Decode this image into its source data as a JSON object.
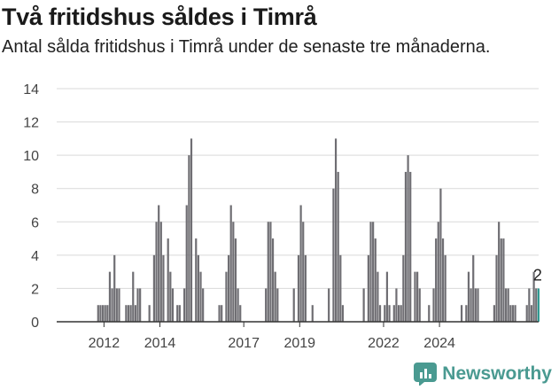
{
  "header": {
    "title": "Två fritidshus såldes i Timrå",
    "subtitle": "Antal sålda fritidshus i Timrå under de senaste tre månaderna."
  },
  "brand": {
    "name": "Newsworthy",
    "icon": "newsworthy-logo-icon",
    "color": "#4a9a91"
  },
  "colors": {
    "bar": "#6f6e73",
    "highlight": "#2f9a91",
    "grid": "#d9d9d9",
    "axis": "#333333"
  },
  "chart_data": {
    "type": "bar",
    "title": "Två fritidshus såldes i Timrå",
    "subtitle": "Antal sålda fritidshus i Timrå under de senaste tre månaderna.",
    "xlabel": "",
    "ylabel": "",
    "ylim": [
      0,
      14
    ],
    "yticks": [
      0,
      2,
      4,
      6,
      8,
      10,
      12,
      14
    ],
    "xtick_labels": [
      "2012",
      "2014",
      "2017",
      "2019",
      "2022",
      "2024"
    ],
    "grid": true,
    "highlight_label": "2",
    "values": [
      0,
      0,
      0,
      0,
      0,
      0,
      0,
      0,
      0,
      0,
      1,
      1,
      1,
      1,
      1,
      3,
      2,
      4,
      2,
      2,
      0,
      0,
      1,
      1,
      1,
      3,
      1,
      2,
      2,
      0,
      0,
      0,
      1,
      0,
      4,
      6,
      7,
      6,
      4,
      0,
      5,
      3,
      2,
      0,
      1,
      1,
      0,
      2,
      7,
      10,
      11,
      0,
      5,
      4,
      3,
      2,
      0,
      0,
      0,
      0,
      0,
      0,
      1,
      1,
      0,
      3,
      4,
      7,
      6,
      5,
      2,
      1,
      0,
      0,
      0,
      0,
      0,
      0,
      0,
      0,
      0,
      0,
      2,
      6,
      6,
      5,
      3,
      2,
      0,
      0,
      0,
      0,
      0,
      0,
      2,
      0,
      4,
      7,
      6,
      4,
      0,
      0,
      1,
      0,
      0,
      0,
      0,
      0,
      0,
      2,
      0,
      8,
      11,
      9,
      4,
      1,
      0,
      0,
      0,
      0,
      0,
      0,
      0,
      0,
      2,
      0,
      4,
      6,
      6,
      5,
      3,
      1,
      0,
      1,
      3,
      1,
      0,
      1,
      2,
      1,
      1,
      4,
      9,
      10,
      9,
      0,
      3,
      3,
      2,
      0,
      0,
      0,
      1,
      0,
      2,
      5,
      6,
      8,
      5,
      4,
      0,
      0,
      0,
      0,
      0,
      0,
      1,
      0,
      1,
      3,
      2,
      4,
      2,
      2,
      0,
      0,
      0,
      0,
      0,
      0,
      1,
      4,
      6,
      5,
      5,
      2,
      2,
      1,
      1,
      1,
      0,
      0,
      0,
      0,
      1,
      2,
      1,
      3,
      2,
      2
    ],
    "highlight_last": 1
  }
}
